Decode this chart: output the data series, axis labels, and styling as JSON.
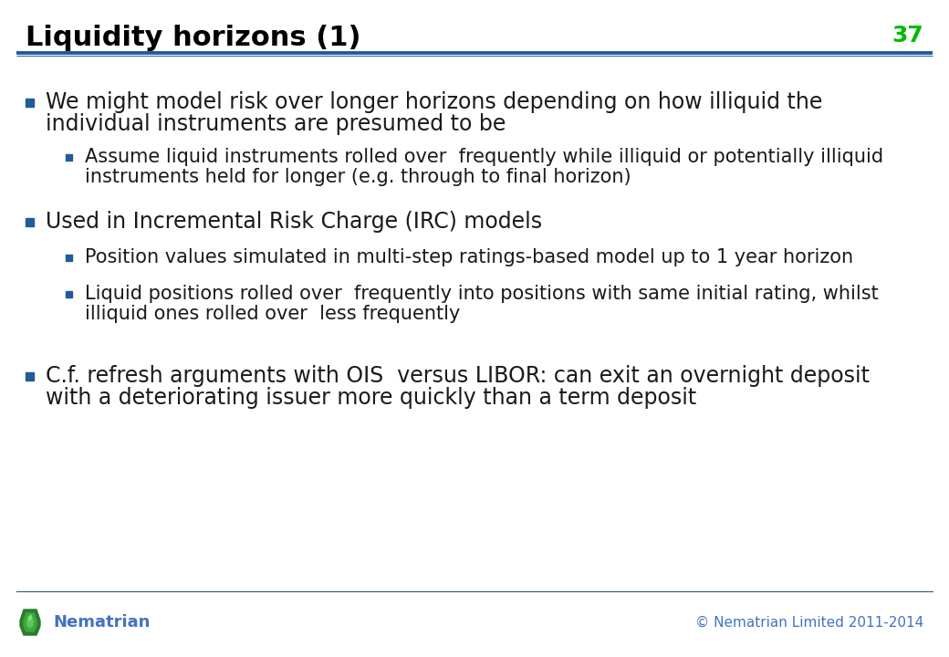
{
  "title": "Liquidity horizons (1)",
  "slide_number": "37",
  "title_color": "#000000",
  "slide_number_color": "#00bb00",
  "header_line_color": "#1F5C99",
  "background_color": "#ffffff",
  "footer_text": "Nematrian",
  "footer_copyright": "© Nematrian Limited 2011-2014",
  "footer_color": "#4472C4",
  "bullet_color": "#1F5C99",
  "text_color": "#1a1a1a",
  "entries": [
    {
      "level": 1,
      "lines": [
        "We might model risk over longer horizons depending on how illiquid the",
        "individual instruments are presumed to be"
      ]
    },
    {
      "level": 2,
      "lines": [
        "Assume liquid instruments rolled over  frequently while illiquid or potentially illiquid",
        "instruments held for longer (e.g. through to final horizon)"
      ]
    },
    {
      "level": 1,
      "lines": [
        "Used in Incremental Risk Charge (IRC) models"
      ]
    },
    {
      "level": 2,
      "lines": [
        "Position values simulated in multi-step ratings-based model up to 1 year horizon"
      ]
    },
    {
      "level": 2,
      "lines": [
        "Liquid positions rolled over  frequently into positions with same initial rating, whilst",
        "illiquid ones rolled over  less frequently"
      ]
    },
    {
      "level": 1,
      "lines": [
        "C.f. refresh arguments with OIS  versus LIBOR: can exit an overnight deposit",
        "with a deteriorating issuer more quickly than a term deposit"
      ]
    }
  ]
}
